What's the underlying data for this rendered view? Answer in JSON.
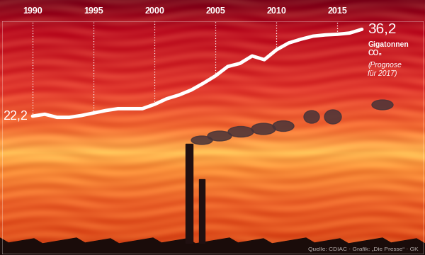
{
  "chart_data": {
    "type": "line",
    "x": [
      1990,
      1991,
      1992,
      1993,
      1994,
      1995,
      1996,
      1997,
      1998,
      1999,
      2000,
      2001,
      2002,
      2003,
      2004,
      2005,
      2006,
      2007,
      2008,
      2009,
      2010,
      2011,
      2012,
      2013,
      2014,
      2015,
      2016,
      2017
    ],
    "values": [
      22.2,
      22.5,
      22.0,
      22.0,
      22.3,
      22.7,
      23.1,
      23.4,
      23.4,
      23.4,
      24.1,
      25.0,
      25.6,
      26.4,
      27.5,
      28.7,
      30.2,
      30.7,
      31.9,
      31.3,
      32.9,
      34.0,
      34.6,
      35.1,
      35.3,
      35.4,
      35.6,
      36.2
    ],
    "value_labels": [
      "22,2",
      null,
      null,
      null,
      null,
      null,
      null,
      null,
      null,
      null,
      null,
      null,
      null,
      null,
      null,
      null,
      null,
      null,
      null,
      null,
      null,
      null,
      null,
      null,
      null,
      null,
      null,
      "36,2"
    ],
    "color": "#ffffff",
    "xlim": [
      1987.5,
      2022
    ],
    "xticks": [
      1990,
      1995,
      2000,
      2005,
      2010,
      2015
    ],
    "ylim": [
      0,
      37.5
    ],
    "tick_labels": "x",
    "unit": "Gigatonnen\nCO₂",
    "note": "(Prognose\nfür 2017)",
    "source": "Quelle: CDIAC · Grafik: „Die Presse“ · GK"
  }
}
